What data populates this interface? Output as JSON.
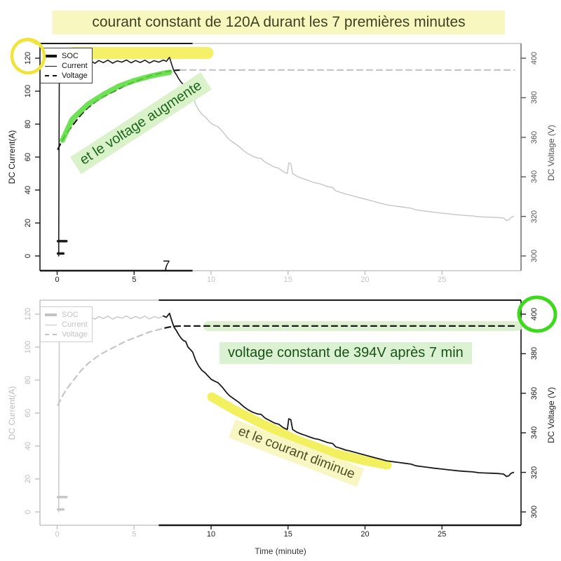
{
  "title": {
    "text": "courant constant de 120A durant les 7 premières minutes"
  },
  "annotations": {
    "voltage_up": "et le voltage augmente",
    "voltage_const": "voltage constant de 394V après 7 min",
    "current_down": "et le courant diminue",
    "seven_label": "7"
  },
  "axes": {
    "x_ticks": [
      0,
      5,
      10,
      15,
      20,
      25
    ],
    "left_ticks": [
      0,
      20,
      40,
      60,
      80,
      100,
      120
    ],
    "right_ticks": [
      300,
      320,
      340,
      360,
      380,
      400
    ],
    "x_label": "Time (minute)",
    "left_label": "DC Current(A)",
    "right_label": "DC Voltage (V)"
  },
  "legend": {
    "items": [
      {
        "label": "SOC",
        "style": "thick"
      },
      {
        "label": "Current",
        "style": "thin"
      },
      {
        "label": "Voltage",
        "style": "dashed"
      }
    ]
  },
  "colors": {
    "black_curve": "#1a1a1a",
    "gray_curve": "#c6c6c6",
    "marker_yellow": "#f2ee4e",
    "marker_green": "#5bdd3e",
    "circle_yellow": "#f0e43a",
    "circle_green": "#3cd91c",
    "band_green": "#d9f0cc",
    "pale_yellow_bg": "#f8f7c0",
    "green_text": "#1a511a",
    "olive_text": "#3c4220"
  },
  "chart_data": {
    "type": "line",
    "x_label": "Time (minute)",
    "x_range": [
      0,
      30
    ],
    "left_axis": {
      "label": "DC Current(A)",
      "range": [
        0,
        120
      ]
    },
    "right_axis": {
      "label": "DC Voltage (V)",
      "range": [
        300,
        400
      ]
    },
    "panels": [
      {
        "position": "top",
        "emphasis": "first ~7 minutes drawn black, rest gray",
        "annotation": "courant constant de 120A durant les 7 premières minutes",
        "curve_cutoff_min": 8.8,
        "axis_cutoff_min": 8.8
      },
      {
        "position": "bottom",
        "emphasis": "after ~7 minutes drawn black, first part gray",
        "annotation": "voltage constant de 394V après 7 min",
        "curve_cutoff_min": 7.0,
        "axis_cutoff_min": 6.6
      }
    ],
    "series": [
      {
        "name": "SOC",
        "style": "thick-solid",
        "unit": "%",
        "axis": "left",
        "stub_segments": [
          [
            [
              0.05,
              9
            ],
            [
              0.6,
              9
            ]
          ],
          [
            [
              0.05,
              1.5
            ],
            [
              0.4,
              1.5
            ]
          ]
        ]
      },
      {
        "name": "Current",
        "style": "thin-solid",
        "unit": "A",
        "axis": "left",
        "points": [
          [
            0.1,
            0
          ],
          [
            0.14,
            118
          ],
          [
            0.4,
            118.5
          ],
          [
            0.7,
            117.4
          ],
          [
            1.0,
            118.8
          ],
          [
            1.3,
            117.2
          ],
          [
            1.6,
            119.0
          ],
          [
            1.9,
            117.5
          ],
          [
            2.2,
            118.3
          ],
          [
            2.45,
            116.9
          ],
          [
            2.7,
            118.6
          ],
          [
            3.0,
            117.3
          ],
          [
            3.3,
            118.8
          ],
          [
            3.6,
            117.0
          ],
          [
            3.9,
            118.4
          ],
          [
            4.2,
            117.6
          ],
          [
            4.5,
            118.9
          ],
          [
            4.8,
            117.2
          ],
          [
            5.1,
            118.6
          ],
          [
            5.4,
            117.4
          ],
          [
            5.7,
            118.8
          ],
          [
            6.0,
            117.1
          ],
          [
            6.3,
            118.5
          ],
          [
            6.6,
            117.6
          ],
          [
            6.9,
            118.9
          ],
          [
            7.1,
            118.1
          ],
          [
            7.3,
            120.5
          ],
          [
            7.45,
            116.0
          ],
          [
            7.6,
            112.0
          ],
          [
            7.75,
            110.0
          ],
          [
            7.9,
            107.5
          ],
          [
            8.05,
            105.5
          ],
          [
            8.2,
            104.0
          ],
          [
            8.35,
            103.4
          ],
          [
            8.5,
            100.0
          ],
          [
            8.65,
            98.5
          ],
          [
            8.8,
            97.0
          ],
          [
            9.0,
            92.0
          ],
          [
            9.2,
            88.5
          ],
          [
            9.4,
            86.0
          ],
          [
            9.6,
            84.5
          ],
          [
            9.8,
            82.5
          ],
          [
            10.0,
            80.5
          ],
          [
            10.2,
            79.5
          ],
          [
            10.45,
            78.4
          ],
          [
            10.7,
            76.0
          ],
          [
            11.0,
            72.5
          ],
          [
            11.2,
            70.5
          ],
          [
            11.5,
            68.5
          ],
          [
            11.8,
            66.5
          ],
          [
            12.1,
            64.0
          ],
          [
            12.4,
            62.0
          ],
          [
            12.7,
            60.5
          ],
          [
            13.0,
            59.5
          ],
          [
            13.25,
            59.2
          ],
          [
            13.5,
            57.0
          ],
          [
            13.8,
            55.5
          ],
          [
            14.1,
            54.0
          ],
          [
            14.4,
            53.2
          ],
          [
            14.7,
            51.0
          ],
          [
            14.95,
            50.0
          ],
          [
            15.05,
            56.5
          ],
          [
            15.18,
            56.0
          ],
          [
            15.3,
            50.0
          ],
          [
            15.55,
            48.5
          ],
          [
            15.8,
            47.5
          ],
          [
            16.1,
            46.5
          ],
          [
            16.4,
            45.5
          ],
          [
            16.7,
            44.5
          ],
          [
            17.0,
            44.0
          ],
          [
            17.3,
            43.0
          ],
          [
            17.6,
            42.0
          ],
          [
            17.9,
            41.5
          ],
          [
            18.1,
            39.5
          ],
          [
            18.45,
            38.5
          ],
          [
            18.75,
            37.5
          ],
          [
            19.0,
            37.0
          ],
          [
            19.4,
            36.0
          ],
          [
            19.8,
            35.0
          ],
          [
            20.2,
            34.0
          ],
          [
            20.6,
            33.0
          ],
          [
            21.0,
            32.0
          ],
          [
            21.4,
            31.0
          ],
          [
            21.8,
            30.5
          ],
          [
            22.2,
            30.0
          ],
          [
            22.6,
            29.5
          ],
          [
            23.0,
            29.0
          ],
          [
            23.3,
            28.0
          ],
          [
            23.7,
            27.5
          ],
          [
            24.1,
            27.0
          ],
          [
            24.5,
            26.5
          ],
          [
            25.0,
            26.0
          ],
          [
            25.5,
            25.5
          ],
          [
            26.0,
            25.0
          ],
          [
            26.5,
            24.6
          ],
          [
            27.0,
            24.3
          ],
          [
            27.4,
            23.8
          ],
          [
            27.8,
            23.6
          ],
          [
            28.2,
            23.5
          ],
          [
            28.6,
            23.3
          ],
          [
            29.0,
            23.0
          ],
          [
            29.2,
            21.5
          ],
          [
            29.35,
            22.0
          ],
          [
            29.5,
            23.5
          ],
          [
            29.65,
            24.0
          ]
        ]
      },
      {
        "name": "Voltage",
        "style": "dashed",
        "unit": "V",
        "axis": "right",
        "points": [
          [
            0.05,
            354
          ],
          [
            0.3,
            358
          ],
          [
            0.6,
            362
          ],
          [
            1.0,
            366
          ],
          [
            1.5,
            371
          ],
          [
            2.0,
            375
          ],
          [
            2.5,
            378
          ],
          [
            3.0,
            380.5
          ],
          [
            3.5,
            382.5
          ],
          [
            4.0,
            384.5
          ],
          [
            4.5,
            386.5
          ],
          [
            5.0,
            388
          ],
          [
            5.5,
            389.5
          ],
          [
            6.0,
            391
          ],
          [
            6.5,
            392
          ],
          [
            7.0,
            393
          ],
          [
            7.5,
            393.8
          ],
          [
            8.0,
            394
          ],
          [
            29.7,
            394
          ]
        ]
      }
    ]
  }
}
